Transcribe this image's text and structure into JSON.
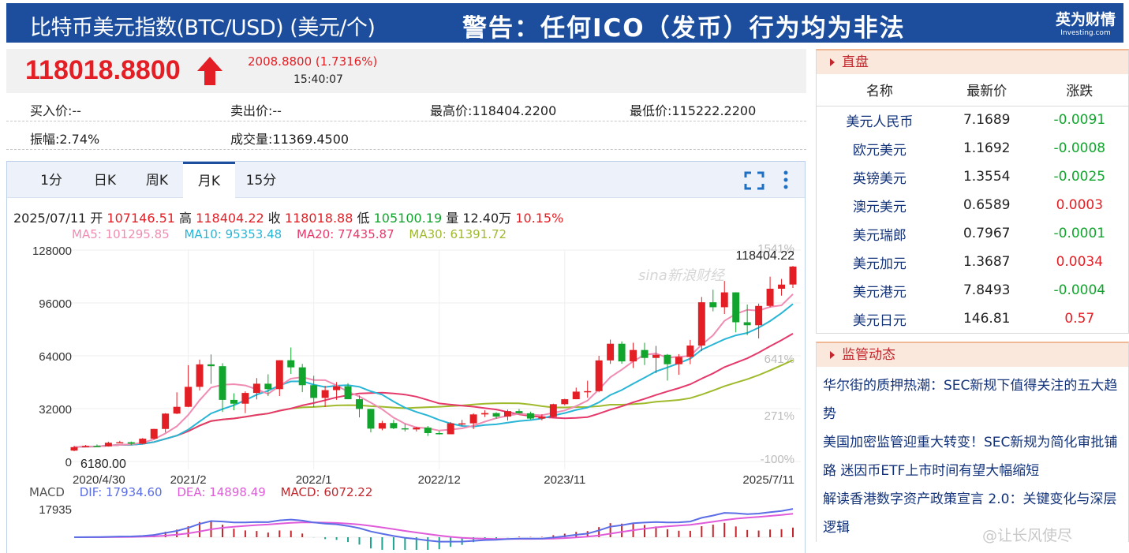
{
  "header": {
    "title": "比特币美元指数(BTC/USD) (美元/个)",
    "warning": "警告：任何ICO（发币）行为均为非法",
    "logo_line1": "英为财情",
    "logo_line2": "Investing.com"
  },
  "quote": {
    "price": "118018.8800",
    "change": "2008.8800 (1.7316%)",
    "time": "15:40:07"
  },
  "stats": {
    "bid": "买入价:--",
    "ask": "卖出价:--",
    "high": "最高价:118404.2200",
    "low": "最低价:115222.2200",
    "amplitude": "振幅:2.74%",
    "volume": "成交量:11369.4500"
  },
  "tabs": [
    {
      "label": "1分"
    },
    {
      "label": "日K"
    },
    {
      "label": "周K"
    },
    {
      "label": "月K"
    },
    {
      "label": "15分"
    }
  ],
  "ohlc": {
    "date": "2025/07/11",
    "open_label": "开",
    "open": "107146.51",
    "high_label": "高",
    "high": "118404.22",
    "close_label": "收",
    "close": "118018.88",
    "low_label": "低",
    "low": "105100.19",
    "vol_label": "量",
    "vol": "12.40万",
    "pct": "10.15%"
  },
  "ma": {
    "ma5": "MA5: 101295.85",
    "ma10": "MA10: 95353.48",
    "ma20": "MA20: 77435.87",
    "ma30": "MA30: 61391.72"
  },
  "macd": {
    "label": "MACD",
    "dif": "DIF: 17934.60",
    "dea": "DEA: 14898.49",
    "macd": "MACD: 6072.22",
    "axis_top": "17935"
  },
  "chart_labels": {
    "max_label": "118404.22",
    "min_label": "6180.00"
  },
  "colors": {
    "up": "#e31e24",
    "down": "#12a52e",
    "ma5": "#f08cb3",
    "ma10": "#28b5d6",
    "ma20": "#e5396b",
    "ma30": "#9fba2c",
    "dif": "#5b6ee6",
    "dea": "#e05bd9",
    "brand": "#1d4e9e"
  },
  "chart_data": {
    "type": "candlestick",
    "ylim": [
      0,
      128000
    ],
    "y_ticks": [
      "128000",
      "96000",
      "64000",
      "32000",
      "0"
    ],
    "pct_ticks": [
      "1541%",
      "641%",
      "271%",
      "-100%"
    ],
    "x_ticks": [
      {
        "label": "2020/4/30",
        "i": 0
      },
      {
        "label": "2021/2",
        "i": 10
      },
      {
        "label": "2022/1",
        "i": 21
      },
      {
        "label": "2022/12",
        "i": 32
      },
      {
        "label": "2023/11",
        "i": 43
      },
      {
        "label": "2025/7/11",
        "i": 63
      }
    ],
    "candles": [
      {
        "o": 6600,
        "c": 8700,
        "h": 9500,
        "l": 6180
      },
      {
        "o": 8700,
        "c": 9400,
        "h": 10000,
        "l": 8600
      },
      {
        "o": 9400,
        "c": 9150,
        "h": 10300,
        "l": 8900
      },
      {
        "o": 9150,
        "c": 11350,
        "h": 12000,
        "l": 9000
      },
      {
        "o": 11350,
        "c": 11650,
        "h": 12500,
        "l": 11000
      },
      {
        "o": 11650,
        "c": 10800,
        "h": 12100,
        "l": 10000
      },
      {
        "o": 10800,
        "c": 13800,
        "h": 14200,
        "l": 10500
      },
      {
        "o": 13800,
        "c": 19700,
        "h": 19800,
        "l": 13300
      },
      {
        "o": 19700,
        "c": 29000,
        "h": 29300,
        "l": 17600
      },
      {
        "o": 29000,
        "c": 33100,
        "h": 41900,
        "l": 28700
      },
      {
        "o": 33100,
        "c": 45200,
        "h": 58300,
        "l": 32900
      },
      {
        "o": 45200,
        "c": 58800,
        "h": 61700,
        "l": 43000
      },
      {
        "o": 58800,
        "c": 57700,
        "h": 64800,
        "l": 47000
      },
      {
        "o": 57700,
        "c": 37300,
        "h": 59500,
        "l": 30000
      },
      {
        "o": 37300,
        "c": 35000,
        "h": 41300,
        "l": 31000
      },
      {
        "o": 35000,
        "c": 41500,
        "h": 42500,
        "l": 29300
      },
      {
        "o": 41500,
        "c": 47100,
        "h": 50500,
        "l": 37600
      },
      {
        "o": 47100,
        "c": 43800,
        "h": 52800,
        "l": 39600
      },
      {
        "o": 43800,
        "c": 61300,
        "h": 61300,
        "l": 39600
      },
      {
        "o": 61300,
        "c": 57000,
        "h": 69000,
        "l": 53000
      },
      {
        "o": 57000,
        "c": 46200,
        "h": 59100,
        "l": 42000
      },
      {
        "o": 46200,
        "c": 38500,
        "h": 51900,
        "l": 32900
      },
      {
        "o": 38500,
        "c": 43200,
        "h": 45800,
        "l": 33000
      },
      {
        "o": 43200,
        "c": 45500,
        "h": 48100,
        "l": 37300
      },
      {
        "o": 45500,
        "c": 37700,
        "h": 47400,
        "l": 37700
      },
      {
        "o": 37700,
        "c": 31800,
        "h": 40000,
        "l": 26700
      },
      {
        "o": 31800,
        "c": 19900,
        "h": 31900,
        "l": 17600
      },
      {
        "o": 19900,
        "c": 23300,
        "h": 24600,
        "l": 18900
      },
      {
        "o": 23300,
        "c": 20100,
        "h": 25200,
        "l": 19600
      },
      {
        "o": 20100,
        "c": 19400,
        "h": 22800,
        "l": 18200
      },
      {
        "o": 19400,
        "c": 20500,
        "h": 21000,
        "l": 18200
      },
      {
        "o": 20500,
        "c": 17200,
        "h": 21500,
        "l": 15500
      },
      {
        "o": 17200,
        "c": 16500,
        "h": 18400,
        "l": 16300
      },
      {
        "o": 16500,
        "c": 23100,
        "h": 23900,
        "l": 16500
      },
      {
        "o": 23100,
        "c": 23100,
        "h": 25200,
        "l": 21400
      },
      {
        "o": 23100,
        "c": 28500,
        "h": 29200,
        "l": 19600
      },
      {
        "o": 28500,
        "c": 29300,
        "h": 31000,
        "l": 26900
      },
      {
        "o": 29300,
        "c": 27200,
        "h": 29800,
        "l": 25900
      },
      {
        "o": 27200,
        "c": 30500,
        "h": 31400,
        "l": 24800
      },
      {
        "o": 30500,
        "c": 29200,
        "h": 31800,
        "l": 28900
      },
      {
        "o": 29200,
        "c": 26000,
        "h": 30200,
        "l": 25400
      },
      {
        "o": 26000,
        "c": 27000,
        "h": 28600,
        "l": 24900
      },
      {
        "o": 27000,
        "c": 34700,
        "h": 35000,
        "l": 26600
      },
      {
        "o": 34700,
        "c": 37700,
        "h": 38000,
        "l": 34000
      },
      {
        "o": 37700,
        "c": 42300,
        "h": 44700,
        "l": 37700
      },
      {
        "o": 42300,
        "c": 42600,
        "h": 48900,
        "l": 38600
      },
      {
        "o": 42600,
        "c": 61200,
        "h": 64000,
        "l": 41900
      },
      {
        "o": 61200,
        "c": 71300,
        "h": 73800,
        "l": 59100
      },
      {
        "o": 71300,
        "c": 60600,
        "h": 72700,
        "l": 59200
      },
      {
        "o": 60600,
        "c": 67500,
        "h": 71900,
        "l": 56600
      },
      {
        "o": 67500,
        "c": 62700,
        "h": 71900,
        "l": 58400
      },
      {
        "o": 62700,
        "c": 64600,
        "h": 70000,
        "l": 53500
      },
      {
        "o": 64600,
        "c": 58900,
        "h": 65100,
        "l": 49000
      },
      {
        "o": 58900,
        "c": 63300,
        "h": 65000,
        "l": 52500
      },
      {
        "o": 63300,
        "c": 70200,
        "h": 73600,
        "l": 58900
      },
      {
        "o": 70200,
        "c": 96400,
        "h": 99600,
        "l": 66800
      },
      {
        "o": 96400,
        "c": 93400,
        "h": 104000,
        "l": 90900
      },
      {
        "o": 93400,
        "c": 102400,
        "h": 109300,
        "l": 89300
      },
      {
        "o": 102400,
        "c": 84300,
        "h": 102500,
        "l": 78200
      },
      {
        "o": 84300,
        "c": 82500,
        "h": 95000,
        "l": 76500
      },
      {
        "o": 82500,
        "c": 94200,
        "h": 95600,
        "l": 74500
      },
      {
        "o": 94200,
        "c": 104600,
        "h": 111900,
        "l": 93300
      },
      {
        "o": 104600,
        "c": 107100,
        "h": 110500,
        "l": 100400
      },
      {
        "o": 107146.51,
        "c": 118018.88,
        "h": 118404.22,
        "l": 105100.19
      }
    ],
    "macd_range": [
      -8000,
      18000
    ]
  },
  "side": {
    "market_title": "直盘",
    "columns": [
      "名称",
      "最新价",
      "涨跌"
    ],
    "rows": [
      {
        "name": "美元人民币",
        "price": "7.1689",
        "chg": "-0.0091",
        "dir": "down"
      },
      {
        "name": "欧元美元",
        "price": "1.1692",
        "chg": "-0.0008",
        "dir": "down"
      },
      {
        "name": "英镑美元",
        "price": "1.3554",
        "chg": "-0.0025",
        "dir": "down"
      },
      {
        "name": "澳元美元",
        "price": "0.6589",
        "chg": "0.0003",
        "dir": "up"
      },
      {
        "name": "美元瑞郎",
        "price": "0.7967",
        "chg": "-0.0001",
        "dir": "down"
      },
      {
        "name": "美元加元",
        "price": "1.3687",
        "chg": "0.0034",
        "dir": "up"
      },
      {
        "name": "美元港元",
        "price": "7.8493",
        "chg": "-0.0004",
        "dir": "down"
      },
      {
        "name": "美元日元",
        "price": "146.81",
        "chg": "0.57",
        "dir": "up"
      }
    ],
    "news_title": "监管动态",
    "news": [
      {
        "text": "华尔街的质押热潮：SEC新规下值得关注的五大趋势"
      },
      {
        "text": "美国加密监管迎重大转变！SEC新规为简化审批铺路 迷因币ETF上市时间有望大幅缩短"
      },
      {
        "text": "解读香港数字资产政策宣言 2.0：关键变化与深层逻辑"
      }
    ]
  },
  "watermark": "@让长风使尽",
  "sina_watermark": "sina新浪财经"
}
